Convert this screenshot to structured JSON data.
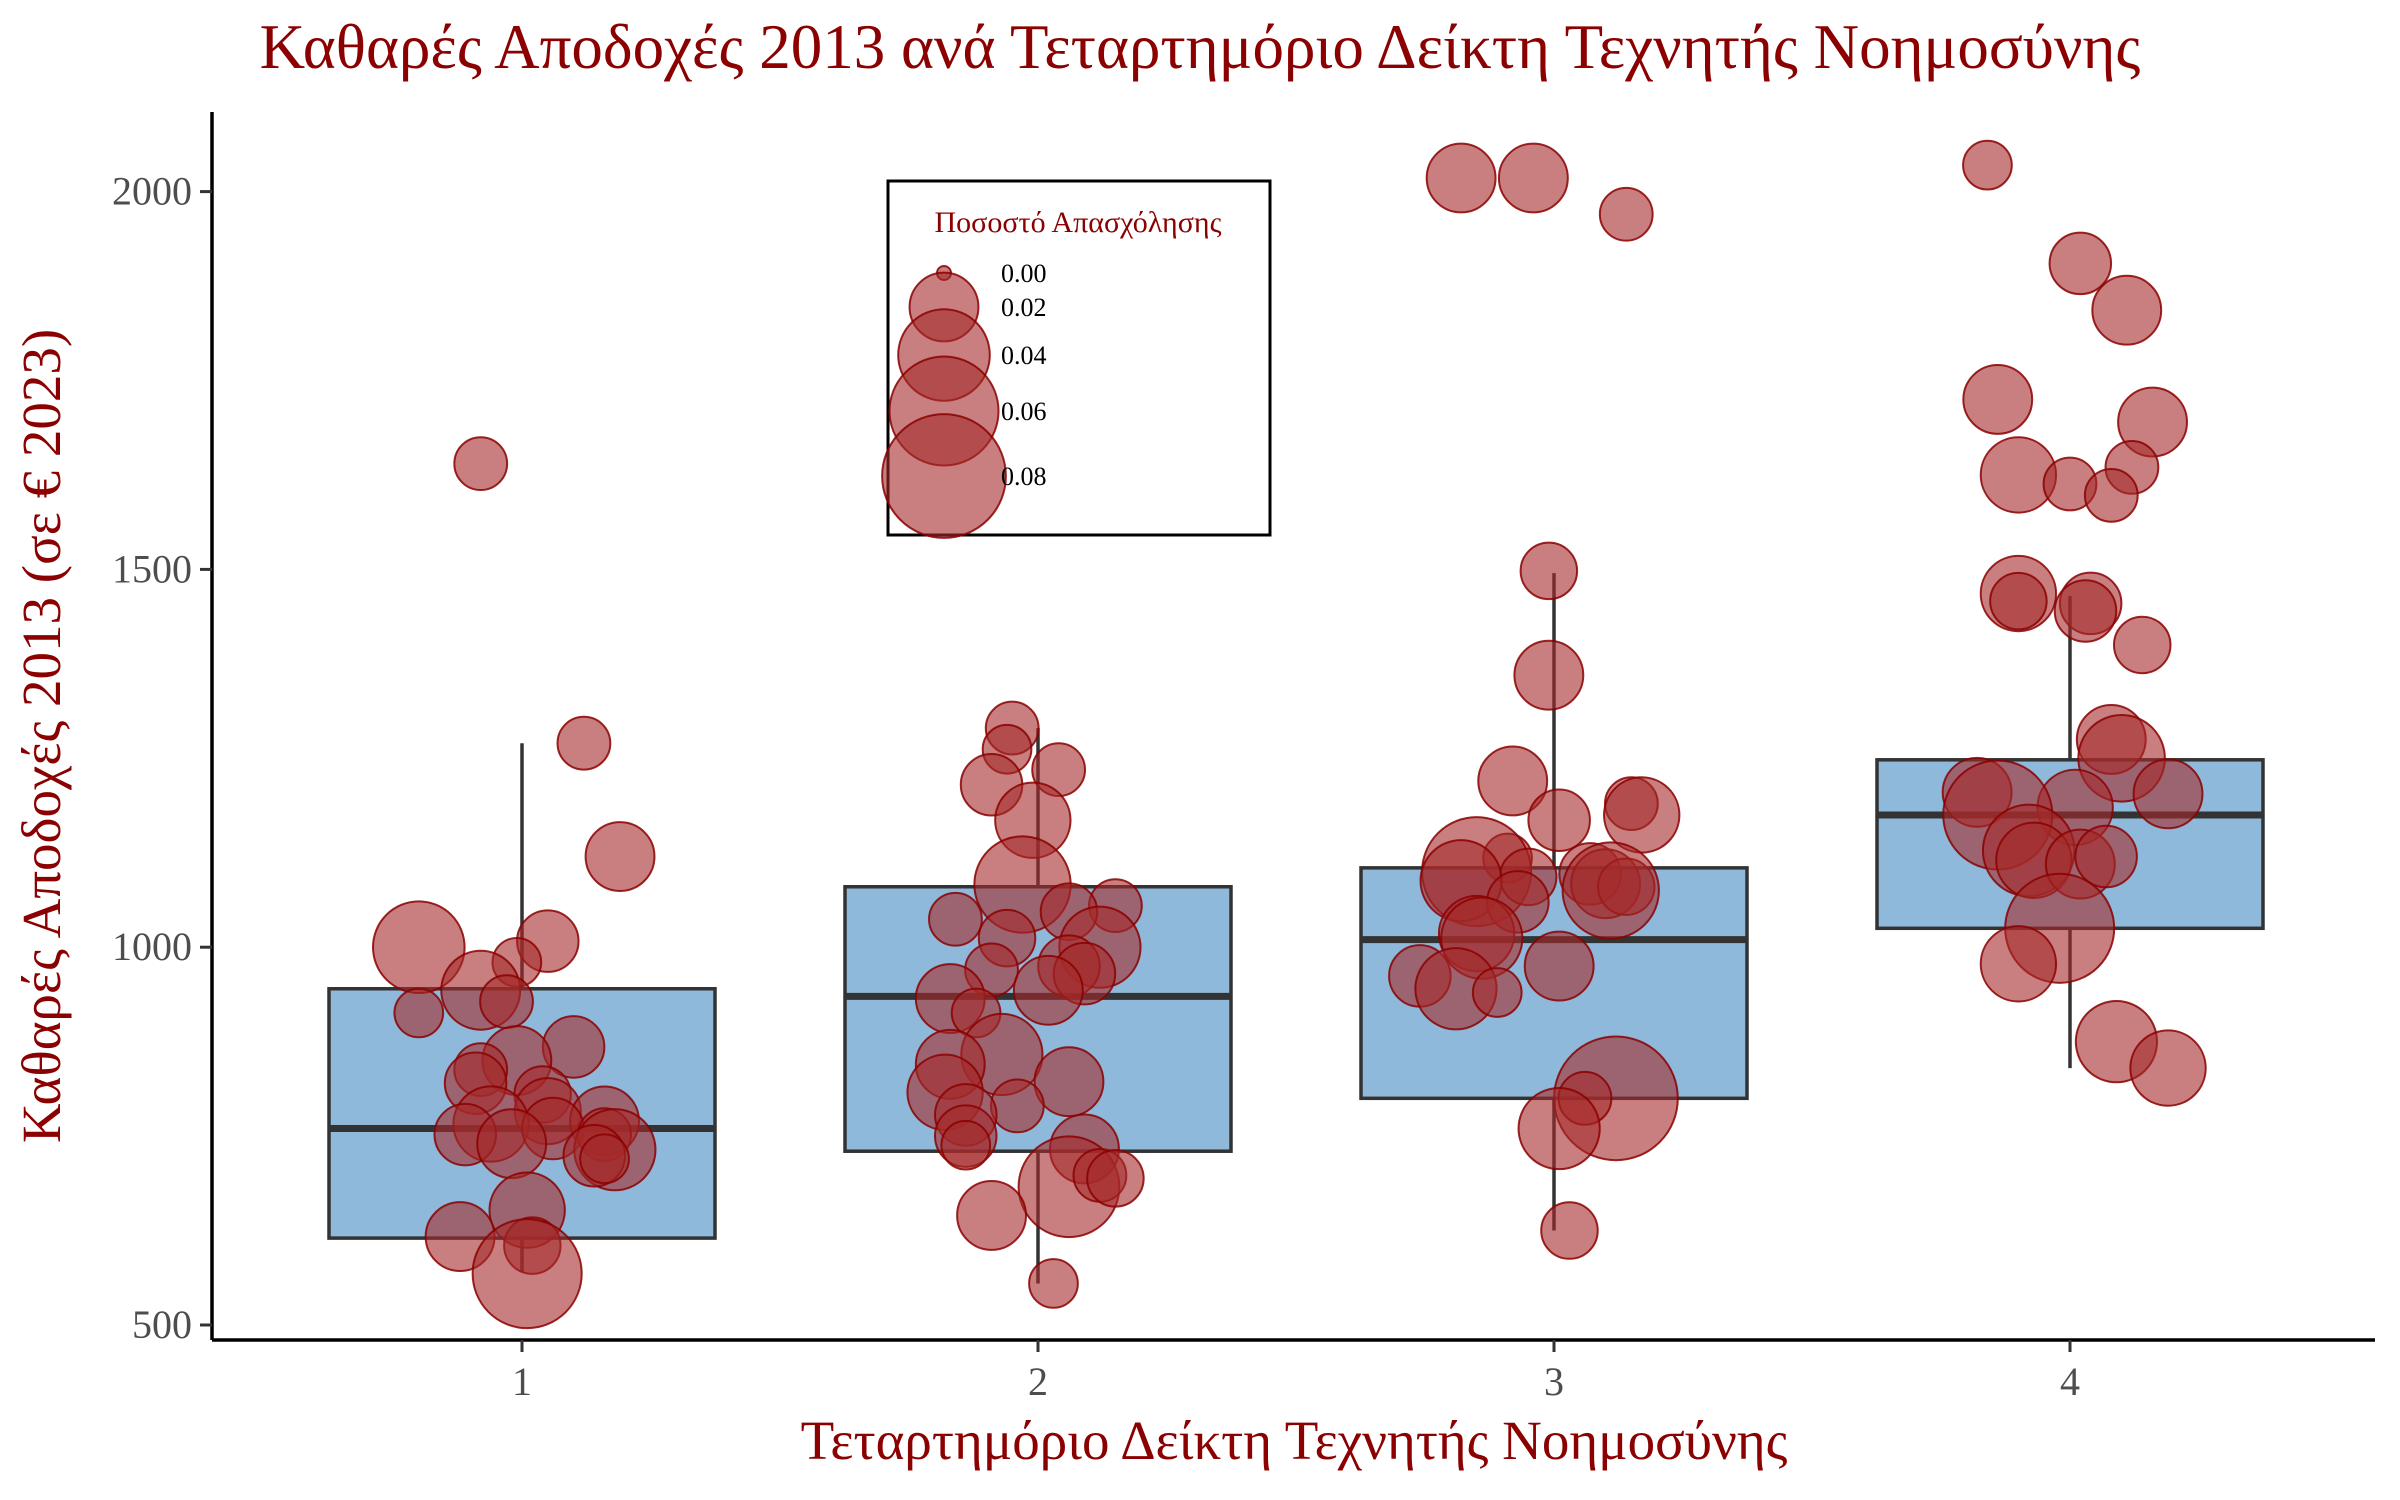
{
  "chart_data": {
    "type": "boxplot",
    "title": "Καθαρές Αποδοχές 2013 ανά Τεταρτημόριο Δείκτη Τεχνητής Νοημοσύνης",
    "xlabel": "Τεταρτημόριο Δείκτη Τεχνητής Νοημοσύνης",
    "ylabel": "Καθαρές Αποδοχές 2013 (σε € 2023)",
    "categories": [
      "1",
      "2",
      "3",
      "4"
    ],
    "y_ticks": [
      500,
      1000,
      1500,
      2000
    ],
    "ylim": [
      480,
      2100
    ],
    "grid": false,
    "legend": {
      "title": "Ποσοστό Απασχόλησης",
      "placement": "top-center",
      "entries": [
        {
          "label": "0.00",
          "size": 0.0
        },
        {
          "label": "0.02",
          "size": 0.02
        },
        {
          "label": "0.04",
          "size": 0.04
        },
        {
          "label": "0.06",
          "size": 0.06
        },
        {
          "label": "0.08",
          "size": 0.08
        }
      ]
    },
    "boxes": [
      {
        "category": "1",
        "whisker_low": 570,
        "q1": 615,
        "median": 760,
        "q3": 945,
        "whisker_high": 1270
      },
      {
        "category": "2",
        "whisker_low": 555,
        "q1": 730,
        "median": 935,
        "q3": 1080,
        "whisker_high": 1290
      },
      {
        "category": "3",
        "whisker_low": 625,
        "q1": 800,
        "median": 1010,
        "q3": 1105,
        "whisker_high": 1495
      },
      {
        "category": "4",
        "whisker_low": 840,
        "q1": 1025,
        "median": 1175,
        "q3": 1248,
        "whisker_high": 1465
      }
    ],
    "points": [
      {
        "category": "1",
        "x_jitter": -0.08,
        "y": 1640,
        "size": 0.01
      },
      {
        "category": "1",
        "x_jitter": 0.12,
        "y": 1270,
        "size": 0.01
      },
      {
        "category": "1",
        "x_jitter": 0.19,
        "y": 1120,
        "size": 0.02
      },
      {
        "category": "1",
        "x_jitter": -0.2,
        "y": 1000,
        "size": 0.04
      },
      {
        "category": "1",
        "x_jitter": 0.05,
        "y": 1008,
        "size": 0.015
      },
      {
        "category": "1",
        "x_jitter": -0.01,
        "y": 980,
        "size": 0.008
      },
      {
        "category": "1",
        "x_jitter": -0.08,
        "y": 943,
        "size": 0.028
      },
      {
        "category": "1",
        "x_jitter": -0.03,
        "y": 928,
        "size": 0.01
      },
      {
        "category": "1",
        "x_jitter": -0.2,
        "y": 913,
        "size": 0.008
      },
      {
        "category": "1",
        "x_jitter": 0.1,
        "y": 868,
        "size": 0.015
      },
      {
        "category": "1",
        "x_jitter": -0.01,
        "y": 850,
        "size": 0.02
      },
      {
        "category": "1",
        "x_jitter": -0.08,
        "y": 838,
        "size": 0.01
      },
      {
        "category": "1",
        "x_jitter": -0.09,
        "y": 820,
        "size": 0.015
      },
      {
        "category": "1",
        "x_jitter": 0.04,
        "y": 805,
        "size": 0.012
      },
      {
        "category": "1",
        "x_jitter": 0.05,
        "y": 783,
        "size": 0.018
      },
      {
        "category": "1",
        "x_jitter": 0.16,
        "y": 770,
        "size": 0.02
      },
      {
        "category": "1",
        "x_jitter": -0.06,
        "y": 766,
        "size": 0.025
      },
      {
        "category": "1",
        "x_jitter": 0.06,
        "y": 760,
        "size": 0.015
      },
      {
        "category": "1",
        "x_jitter": -0.11,
        "y": 752,
        "size": 0.015
      },
      {
        "category": "1",
        "x_jitter": 0.16,
        "y": 752,
        "size": 0.01
      },
      {
        "category": "1",
        "x_jitter": -0.02,
        "y": 740,
        "size": 0.02
      },
      {
        "category": "1",
        "x_jitter": 0.18,
        "y": 732,
        "size": 0.03
      },
      {
        "category": "1",
        "x_jitter": 0.14,
        "y": 724,
        "size": 0.015
      },
      {
        "category": "1",
        "x_jitter": 0.16,
        "y": 720,
        "size": 0.008
      },
      {
        "category": "1",
        "x_jitter": 0.01,
        "y": 652,
        "size": 0.025
      },
      {
        "category": "1",
        "x_jitter": -0.12,
        "y": 617,
        "size": 0.02
      },
      {
        "category": "1",
        "x_jitter": 0.02,
        "y": 605,
        "size": 0.012
      },
      {
        "category": "1",
        "x_jitter": 0.01,
        "y": 568,
        "size": 0.06
      },
      {
        "category": "2",
        "x_jitter": -0.05,
        "y": 1290,
        "size": 0.01
      },
      {
        "category": "2",
        "x_jitter": -0.06,
        "y": 1262,
        "size": 0.008
      },
      {
        "category": "2",
        "x_jitter": 0.04,
        "y": 1235,
        "size": 0.01
      },
      {
        "category": "2",
        "x_jitter": -0.09,
        "y": 1215,
        "size": 0.015
      },
      {
        "category": "2",
        "x_jitter": -0.01,
        "y": 1168,
        "size": 0.025
      },
      {
        "category": "2",
        "x_jitter": -0.03,
        "y": 1083,
        "size": 0.045
      },
      {
        "category": "2",
        "x_jitter": 0.15,
        "y": 1055,
        "size": 0.01
      },
      {
        "category": "2",
        "x_jitter": 0.06,
        "y": 1047,
        "size": 0.012
      },
      {
        "category": "2",
        "x_jitter": -0.16,
        "y": 1037,
        "size": 0.01
      },
      {
        "category": "2",
        "x_jitter": -0.06,
        "y": 1012,
        "size": 0.012
      },
      {
        "category": "2",
        "x_jitter": 0.12,
        "y": 1000,
        "size": 0.03
      },
      {
        "category": "2",
        "x_jitter": 0.06,
        "y": 975,
        "size": 0.015
      },
      {
        "category": "2",
        "x_jitter": 0.09,
        "y": 965,
        "size": 0.015
      },
      {
        "category": "2",
        "x_jitter": -0.09,
        "y": 970,
        "size": 0.01
      },
      {
        "category": "2",
        "x_jitter": 0.02,
        "y": 943,
        "size": 0.02
      },
      {
        "category": "2",
        "x_jitter": -0.17,
        "y": 932,
        "size": 0.02
      },
      {
        "category": "2",
        "x_jitter": -0.12,
        "y": 913,
        "size": 0.008
      },
      {
        "category": "2",
        "x_jitter": -0.07,
        "y": 858,
        "size": 0.03
      },
      {
        "category": "2",
        "x_jitter": -0.17,
        "y": 845,
        "size": 0.02
      },
      {
        "category": "2",
        "x_jitter": 0.06,
        "y": 822,
        "size": 0.02
      },
      {
        "category": "2",
        "x_jitter": -0.18,
        "y": 808,
        "size": 0.025
      },
      {
        "category": "2",
        "x_jitter": -0.04,
        "y": 790,
        "size": 0.01
      },
      {
        "category": "2",
        "x_jitter": -0.14,
        "y": 778,
        "size": 0.015
      },
      {
        "category": "2",
        "x_jitter": -0.14,
        "y": 750,
        "size": 0.015
      },
      {
        "category": "2",
        "x_jitter": -0.14,
        "y": 738,
        "size": 0.008
      },
      {
        "category": "2",
        "x_jitter": 0.09,
        "y": 733,
        "size": 0.02
      },
      {
        "category": "2",
        "x_jitter": 0.06,
        "y": 683,
        "size": 0.05
      },
      {
        "category": "2",
        "x_jitter": 0.12,
        "y": 698,
        "size": 0.01
      },
      {
        "category": "2",
        "x_jitter": 0.15,
        "y": 694,
        "size": 0.012
      },
      {
        "category": "2",
        "x_jitter": -0.09,
        "y": 645,
        "size": 0.02
      },
      {
        "category": "2",
        "x_jitter": 0.03,
        "y": 555,
        "size": 0.008
      },
      {
        "category": "3",
        "x_jitter": -0.18,
        "y": 2018,
        "size": 0.02
      },
      {
        "category": "3",
        "x_jitter": -0.04,
        "y": 2018,
        "size": 0.02
      },
      {
        "category": "3",
        "x_jitter": 0.14,
        "y": 1970,
        "size": 0.01
      },
      {
        "category": "3",
        "x_jitter": -0.01,
        "y": 1498,
        "size": 0.012
      },
      {
        "category": "3",
        "x_jitter": -0.01,
        "y": 1360,
        "size": 0.02
      },
      {
        "category": "3",
        "x_jitter": -0.08,
        "y": 1220,
        "size": 0.02
      },
      {
        "category": "3",
        "x_jitter": 0.15,
        "y": 1190,
        "size": 0.01
      },
      {
        "category": "3",
        "x_jitter": 0.17,
        "y": 1175,
        "size": 0.025
      },
      {
        "category": "3",
        "x_jitter": 0.01,
        "y": 1168,
        "size": 0.015
      },
      {
        "category": "3",
        "x_jitter": -0.09,
        "y": 1118,
        "size": 0.008
      },
      {
        "category": "3",
        "x_jitter": -0.15,
        "y": 1100,
        "size": 0.06
      },
      {
        "category": "3",
        "x_jitter": -0.05,
        "y": 1093,
        "size": 0.012
      },
      {
        "category": "3",
        "x_jitter": 0.07,
        "y": 1097,
        "size": 0.015
      },
      {
        "category": "3",
        "x_jitter": -0.18,
        "y": 1088,
        "size": 0.03
      },
      {
        "category": "3",
        "x_jitter": 0.1,
        "y": 1084,
        "size": 0.02
      },
      {
        "category": "3",
        "x_jitter": 0.14,
        "y": 1080,
        "size": 0.012
      },
      {
        "category": "3",
        "x_jitter": 0.11,
        "y": 1075,
        "size": 0.045
      },
      {
        "category": "3",
        "x_jitter": -0.07,
        "y": 1060,
        "size": 0.015
      },
      {
        "category": "3",
        "x_jitter": -0.15,
        "y": 1018,
        "size": 0.025
      },
      {
        "category": "3",
        "x_jitter": -0.14,
        "y": 1012,
        "size": 0.03
      },
      {
        "category": "3",
        "x_jitter": 0.01,
        "y": 975,
        "size": 0.02
      },
      {
        "category": "3",
        "x_jitter": -0.26,
        "y": 962,
        "size": 0.015
      },
      {
        "category": "3",
        "x_jitter": -0.19,
        "y": 945,
        "size": 0.03
      },
      {
        "category": "3",
        "x_jitter": -0.11,
        "y": 940,
        "size": 0.008
      },
      {
        "category": "3",
        "x_jitter": 0.12,
        "y": 800,
        "size": 0.08
      },
      {
        "category": "3",
        "x_jitter": 0.06,
        "y": 800,
        "size": 0.01
      },
      {
        "category": "3",
        "x_jitter": 0.01,
        "y": 760,
        "size": 0.03
      },
      {
        "category": "3",
        "x_jitter": 0.03,
        "y": 625,
        "size": 0.012
      },
      {
        "category": "4",
        "x_jitter": -0.16,
        "y": 2035,
        "size": 0.008
      },
      {
        "category": "4",
        "x_jitter": 0.02,
        "y": 1905,
        "size": 0.015
      },
      {
        "category": "4",
        "x_jitter": 0.11,
        "y": 1843,
        "size": 0.02
      },
      {
        "category": "4",
        "x_jitter": -0.14,
        "y": 1725,
        "size": 0.02
      },
      {
        "category": "4",
        "x_jitter": 0.16,
        "y": 1695,
        "size": 0.02
      },
      {
        "category": "4",
        "x_jitter": 0.12,
        "y": 1635,
        "size": 0.01
      },
      {
        "category": "4",
        "x_jitter": -0.1,
        "y": 1625,
        "size": 0.025
      },
      {
        "category": "4",
        "x_jitter": 0.0,
        "y": 1613,
        "size": 0.01
      },
      {
        "category": "4",
        "x_jitter": 0.08,
        "y": 1598,
        "size": 0.01
      },
      {
        "category": "4",
        "x_jitter": -0.1,
        "y": 1468,
        "size": 0.025
      },
      {
        "category": "4",
        "x_jitter": -0.1,
        "y": 1458,
        "size": 0.012
      },
      {
        "category": "4",
        "x_jitter": 0.04,
        "y": 1455,
        "size": 0.015
      },
      {
        "category": "4",
        "x_jitter": 0.03,
        "y": 1445,
        "size": 0.015
      },
      {
        "category": "4",
        "x_jitter": 0.14,
        "y": 1400,
        "size": 0.012
      },
      {
        "category": "4",
        "x_jitter": 0.08,
        "y": 1275,
        "size": 0.02
      },
      {
        "category": "4",
        "x_jitter": 0.1,
        "y": 1250,
        "size": 0.035
      },
      {
        "category": "4",
        "x_jitter": -0.18,
        "y": 1205,
        "size": 0.02
      },
      {
        "category": "4",
        "x_jitter": 0.19,
        "y": 1203,
        "size": 0.02
      },
      {
        "category": "4",
        "x_jitter": 0.01,
        "y": 1185,
        "size": 0.025
      },
      {
        "category": "4",
        "x_jitter": -0.14,
        "y": 1175,
        "size": 0.06
      },
      {
        "category": "4",
        "x_jitter": -0.08,
        "y": 1128,
        "size": 0.04
      },
      {
        "category": "4",
        "x_jitter": -0.07,
        "y": 1115,
        "size": 0.025
      },
      {
        "category": "4",
        "x_jitter": 0.02,
        "y": 1110,
        "size": 0.02
      },
      {
        "category": "4",
        "x_jitter": 0.07,
        "y": 1120,
        "size": 0.015
      },
      {
        "category": "4",
        "x_jitter": -0.02,
        "y": 1025,
        "size": 0.06
      },
      {
        "category": "4",
        "x_jitter": -0.1,
        "y": 978,
        "size": 0.025
      },
      {
        "category": "4",
        "x_jitter": 0.09,
        "y": 875,
        "size": 0.03
      },
      {
        "category": "4",
        "x_jitter": 0.19,
        "y": 840,
        "size": 0.025
      }
    ]
  }
}
